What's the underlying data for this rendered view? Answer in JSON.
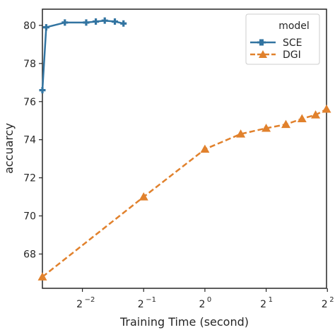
{
  "chart_data": {
    "type": "line",
    "xlabel": "Training Time (second)",
    "ylabel": "accuarcy",
    "x_scale": "log2",
    "xlim": [
      0.159,
      3.96
    ],
    "ylim": [
      66.2,
      80.85
    ],
    "x_ticks": [
      {
        "value": 0.25,
        "base": "2",
        "exp": "−2"
      },
      {
        "value": 0.5,
        "base": "2",
        "exp": "−1"
      },
      {
        "value": 1,
        "base": "2",
        "exp": "0"
      },
      {
        "value": 2,
        "base": "2",
        "exp": "1"
      },
      {
        "value": 4,
        "base": "2",
        "exp": "2"
      }
    ],
    "y_ticks": [
      68,
      70,
      72,
      74,
      76,
      78,
      80
    ],
    "legend": {
      "title": "model",
      "position": "top-right"
    },
    "grid": false,
    "series": [
      {
        "name": "SCE",
        "color": "#3274a1",
        "linestyle": "solid",
        "marker": "plus",
        "x": [
          0.159,
          0.166,
          0.205,
          0.261,
          0.291,
          0.322,
          0.361,
          0.398
        ],
        "y": [
          76.6,
          79.9,
          80.15,
          80.15,
          80.2,
          80.25,
          80.2,
          80.1
        ]
      },
      {
        "name": "DGI",
        "color": "#e1812c",
        "linestyle": "dashed",
        "marker": "triangle",
        "x": [
          0.159,
          0.5,
          1.0,
          1.5,
          2.0,
          2.5,
          3.0,
          3.5,
          3.96
        ],
        "y": [
          66.8,
          71.0,
          73.5,
          74.3,
          74.6,
          74.8,
          75.1,
          75.3,
          75.6
        ]
      }
    ]
  }
}
